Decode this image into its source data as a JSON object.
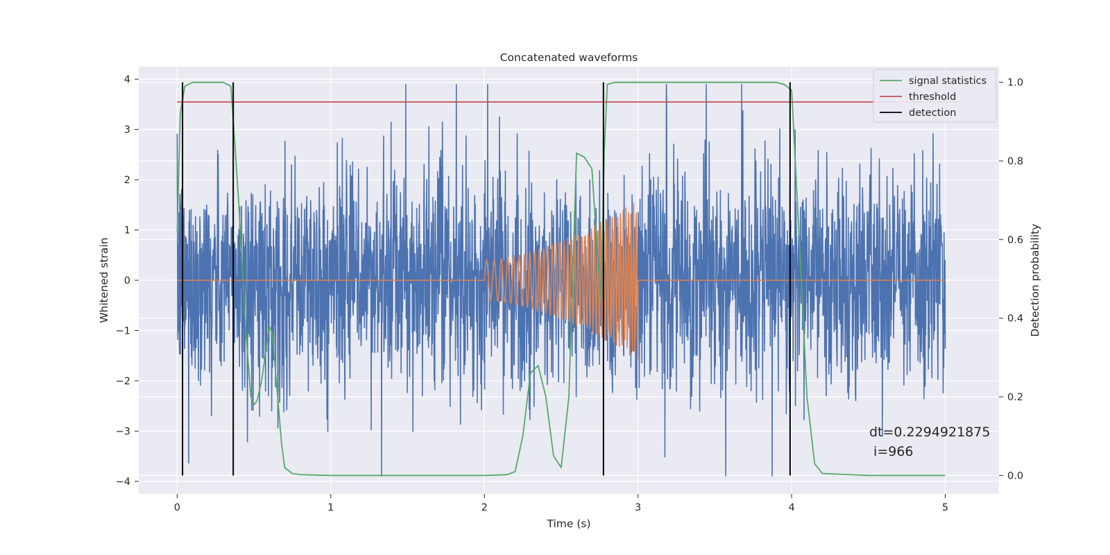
{
  "chart_data": {
    "type": "line",
    "title": "Concatenated waveforms",
    "xlabel": "Time (s)",
    "ylabel": "Whitened strain",
    "ylabel_right": "Detection probability",
    "xlim": [
      -0.25,
      5.35
    ],
    "ylim": [
      -4.25,
      4.25
    ],
    "ylim_right": [
      -0.047,
      1.04
    ],
    "x_ticks": [
      0,
      1,
      2,
      3,
      4,
      5
    ],
    "y_ticks": [
      -4,
      -3,
      -2,
      -1,
      0,
      1,
      2,
      3,
      4
    ],
    "y_ticks_right": [
      0.0,
      0.2,
      0.4,
      0.6,
      0.8,
      1.0
    ],
    "grid": true,
    "legend_position": "top-right",
    "noise_series": {
      "axis": "left",
      "color": "#4c72b0",
      "x_range": [
        0,
        5
      ],
      "approx_min": -3.9,
      "approx_max": 3.9,
      "description_points": [
        [
          0,
          0
        ],
        [
          5,
          0
        ]
      ]
    },
    "template_series": {
      "axis": "left",
      "color": "#dd8452",
      "chirp_start": 2.0,
      "chirp_end": 3.0,
      "amplitude_start": 0.4,
      "amplitude_end": 1.6
    },
    "series": [
      {
        "name": "signal statistics",
        "axis": "right",
        "color": "#55a868",
        "x": [
          0.0,
          0.02,
          0.05,
          0.1,
          0.3,
          0.35,
          0.4,
          0.45,
          0.48,
          0.5,
          0.52,
          0.55,
          0.6,
          0.62,
          0.65,
          0.68,
          0.7,
          0.75,
          0.8,
          1.0,
          1.5,
          2.0,
          2.15,
          2.2,
          2.25,
          2.3,
          2.35,
          2.4,
          2.45,
          2.5,
          2.55,
          2.6,
          2.65,
          2.7,
          2.73,
          2.76,
          2.78,
          2.8,
          2.85,
          2.9,
          3.0,
          3.5,
          3.9,
          3.95,
          4.0,
          4.05,
          4.1,
          4.15,
          4.2,
          4.5,
          5.0
        ],
        "values": [
          0.62,
          0.92,
          0.99,
          1.0,
          1.0,
          0.99,
          0.7,
          0.35,
          0.2,
          0.18,
          0.19,
          0.24,
          0.38,
          0.36,
          0.22,
          0.08,
          0.02,
          0.005,
          0.002,
          0.0,
          0.0,
          0.0,
          0.002,
          0.01,
          0.1,
          0.26,
          0.28,
          0.2,
          0.05,
          0.02,
          0.2,
          0.82,
          0.81,
          0.78,
          0.6,
          0.44,
          0.82,
          0.995,
          1.0,
          1.0,
          1.0,
          1.0,
          1.0,
          0.995,
          0.98,
          0.6,
          0.2,
          0.03,
          0.005,
          0.0,
          0.0
        ]
      },
      {
        "name": "threshold",
        "axis": "right",
        "color": "#c44e52",
        "x": [
          0,
          5.1
        ],
        "values": [
          0.95,
          0.95
        ]
      },
      {
        "name": "detection",
        "axis": "right",
        "color": "#000000",
        "type": "vlines",
        "x": [
          0.035,
          0.365,
          2.775,
          3.99
        ],
        "range": [
          0,
          1
        ]
      }
    ],
    "legend": [
      "signal statistics",
      "threshold",
      "detection"
    ],
    "annotation": {
      "line1": "dt=0.2294921875",
      "line2": " i=966"
    }
  }
}
